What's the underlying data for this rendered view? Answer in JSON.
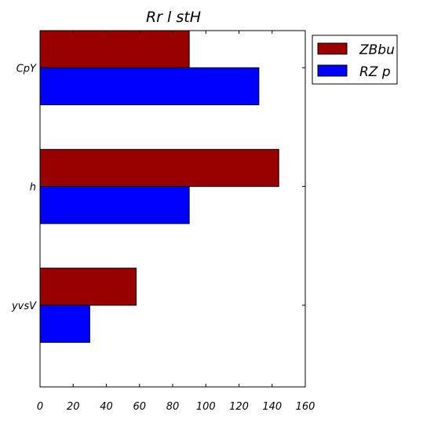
{
  "chart_data": {
    "type": "bar",
    "orientation": "horizontal",
    "title": "Rr l   stH",
    "xlabel": "",
    "ylabel": "",
    "categories": [
      "CpY",
      "h",
      "yvsV"
    ],
    "series": [
      {
        "name": "ZBbu",
        "color": "#990000",
        "values": [
          90,
          144,
          58
        ]
      },
      {
        "name": "RZ p",
        "color": "#0000ff",
        "values": [
          132,
          90,
          30
        ]
      }
    ],
    "xlim": [
      0,
      160
    ],
    "xticks": [
      0,
      20,
      40,
      60,
      80,
      100,
      120,
      140,
      160
    ],
    "grid": false,
    "legend_position": "outside-top-right"
  }
}
